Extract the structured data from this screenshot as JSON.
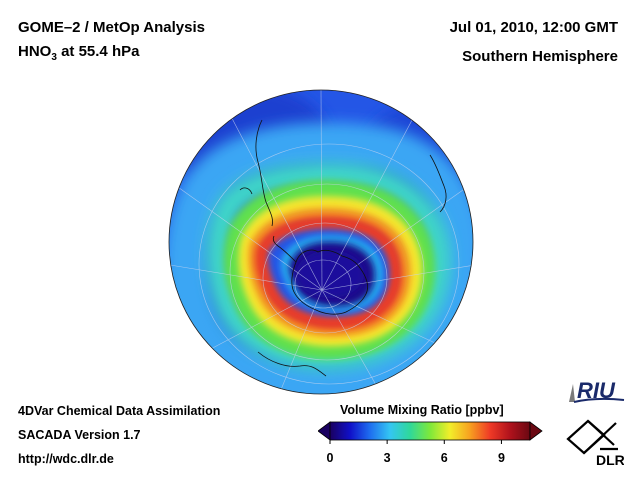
{
  "header": {
    "title_line1": "GOME–2 / MetOp Analysis",
    "title_species": "HNO",
    "title_subscript": "3",
    "title_rest": " at 55.4 hPa",
    "date": "Jul 01, 2010, 12:00 GMT",
    "hemisphere": "Southern Hemisphere"
  },
  "footer": {
    "line1": "4DVar Chemical Data Assimilation",
    "line2": "SACADA Version 1.7",
    "line3": "http://wdc.dlr.de"
  },
  "colorbar": {
    "title": "Volume Mixing Ratio [ppbv]",
    "range": [
      0,
      10.5
    ],
    "tick_values": [
      0,
      3,
      6,
      9
    ],
    "ticks": [
      "0",
      "3",
      "6",
      "9"
    ],
    "colors": [
      "#1a0060",
      "#1010c8",
      "#1e6ef0",
      "#34c6f2",
      "#2fd89a",
      "#7ee83a",
      "#f2ee2a",
      "#f7a020",
      "#ef3a26",
      "#b0121c",
      "#6a0812"
    ]
  },
  "logos": {
    "riu": "RIU",
    "dlr": "DLR"
  },
  "map": {
    "projection": "orthographic-south-polar",
    "background_color": "#2050e0",
    "vortex_color": "#1a0a8a"
  }
}
